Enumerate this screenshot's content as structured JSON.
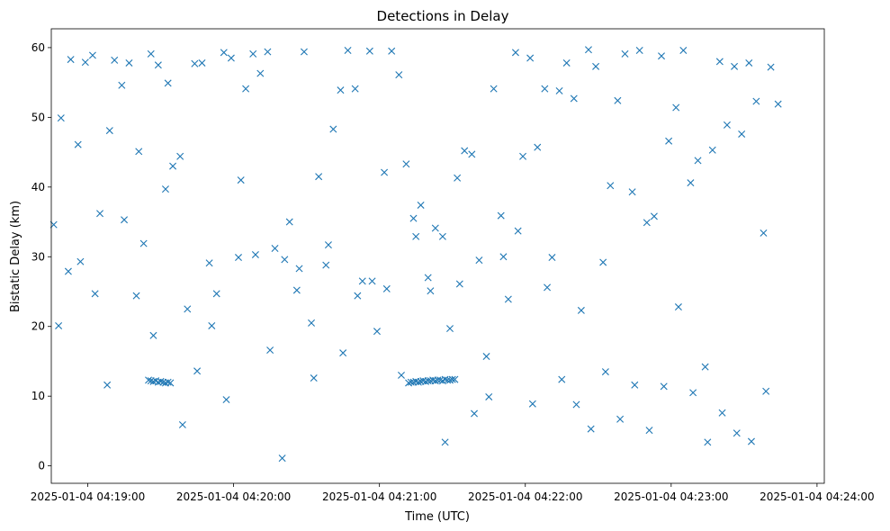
{
  "chart_data": {
    "type": "scatter",
    "title": "Detections in Delay",
    "xlabel": "Time (UTC)",
    "ylabel": "Bistatic Delay (km)",
    "x_axis": "time",
    "xlim": [
      "2025-01-04 04:18:45",
      "2025-01-04 04:24:03"
    ],
    "ylim": [
      -2.5,
      62.7
    ],
    "x_ticks": [
      "2025-01-04 04:19:00",
      "2025-01-04 04:20:00",
      "2025-01-04 04:21:00",
      "2025-01-04 04:22:00",
      "2025-01-04 04:23:00",
      "2025-01-04 04:24:00"
    ],
    "y_ticks": [
      0,
      10,
      20,
      30,
      40,
      50,
      60
    ],
    "grid": false,
    "legend": "none",
    "marker": "x",
    "color": "#1f77b4",
    "series": [
      {
        "x": [
          "2025-01-04 04:18:46",
          "2025-01-04 04:18:49",
          "2025-01-04 04:18:53",
          "2025-01-04 04:18:56",
          "2025-01-04 04:18:59",
          "2025-01-04 04:19:02",
          "2025-01-04 04:19:05",
          "2025-01-04 04:19:08",
          "2025-01-04 04:19:11",
          "2025-01-04 04:19:14",
          "2025-01-04 04:19:17",
          "2025-01-04 04:19:20",
          "2025-01-04 04:19:23",
          "2025-01-04 04:19:26",
          "2025-01-04 04:19:29",
          "2025-01-04 04:19:32",
          "2025-01-04 04:19:35",
          "2025-01-04 04:19:38",
          "2025-01-04 04:19:41",
          "2025-01-04 04:19:44",
          "2025-01-04 04:19:47",
          "2025-01-04 04:19:50",
          "2025-01-04 04:19:53",
          "2025-01-04 04:19:56",
          "2025-01-04 04:19:59",
          "2025-01-04 04:20:02",
          "2025-01-04 04:20:05",
          "2025-01-04 04:20:08",
          "2025-01-04 04:20:11",
          "2025-01-04 04:20:14",
          "2025-01-04 04:20:17",
          "2025-01-04 04:20:20",
          "2025-01-04 04:20:23",
          "2025-01-04 04:20:26",
          "2025-01-04 04:20:29",
          "2025-01-04 04:20:32",
          "2025-01-04 04:20:35",
          "2025-01-04 04:20:38",
          "2025-01-04 04:20:41",
          "2025-01-04 04:20:44",
          "2025-01-04 04:20:47",
          "2025-01-04 04:20:50",
          "2025-01-04 04:20:53",
          "2025-01-04 04:20:56",
          "2025-01-04 04:20:59",
          "2025-01-04 04:21:02",
          "2025-01-04 04:21:05",
          "2025-01-04 04:21:08",
          "2025-01-04 04:21:11",
          "2025-01-04 04:21:14",
          "2025-01-04 04:21:17",
          "2025-01-04 04:21:20",
          "2025-01-04 04:21:23",
          "2025-01-04 04:21:26",
          "2025-01-04 04:21:29",
          "2025-01-04 04:21:32",
          "2025-01-04 04:21:35",
          "2025-01-04 04:21:38",
          "2025-01-04 04:21:41",
          "2025-01-04 04:21:44",
          "2025-01-04 04:21:47",
          "2025-01-04 04:21:50",
          "2025-01-04 04:21:53",
          "2025-01-04 04:21:56",
          "2025-01-04 04:21:59",
          "2025-01-04 04:22:02",
          "2025-01-04 04:22:05",
          "2025-01-04 04:22:08",
          "2025-01-04 04:22:11",
          "2025-01-04 04:22:14",
          "2025-01-04 04:22:17",
          "2025-01-04 04:22:20",
          "2025-01-04 04:22:23",
          "2025-01-04 04:22:26",
          "2025-01-04 04:22:29",
          "2025-01-04 04:22:32",
          "2025-01-04 04:22:35",
          "2025-01-04 04:22:38",
          "2025-01-04 04:22:41",
          "2025-01-04 04:22:44",
          "2025-01-04 04:22:47",
          "2025-01-04 04:22:50",
          "2025-01-04 04:22:53",
          "2025-01-04 04:22:56",
          "2025-01-04 04:22:59",
          "2025-01-04 04:23:02",
          "2025-01-04 04:23:05",
          "2025-01-04 04:23:08",
          "2025-01-04 04:23:11",
          "2025-01-04 04:23:14",
          "2025-01-04 04:23:17",
          "2025-01-04 04:23:20",
          "2025-01-04 04:23:23",
          "2025-01-04 04:23:26",
          "2025-01-04 04:23:29",
          "2025-01-04 04:23:32",
          "2025-01-04 04:23:35",
          "2025-01-04 04:23:38",
          "2025-01-04 04:23:41",
          "2025-01-04 04:23:44",
          "2025-01-04 04:18:48",
          "2025-01-04 04:18:52",
          "2025-01-04 04:18:57",
          "2025-01-04 04:19:03",
          "2025-01-04 04:19:09",
          "2025-01-04 04:19:15",
          "2025-01-04 04:19:21",
          "2025-01-04 04:19:27",
          "2025-01-04 04:19:33",
          "2025-01-04 04:19:39",
          "2025-01-04 04:19:45",
          "2025-01-04 04:19:51",
          "2025-01-04 04:19:57",
          "2025-01-04 04:20:03",
          "2025-01-04 04:20:09",
          "2025-01-04 04:20:15",
          "2025-01-04 04:20:21",
          "2025-01-04 04:20:27",
          "2025-01-04 04:20:33",
          "2025-01-04 04:20:39",
          "2025-01-04 04:20:45",
          "2025-01-04 04:20:51",
          "2025-01-04 04:20:57",
          "2025-01-04 04:21:03",
          "2025-01-04 04:21:09",
          "2025-01-04 04:21:15",
          "2025-01-04 04:21:21",
          "2025-01-04 04:21:27",
          "2025-01-04 04:21:33",
          "2025-01-04 04:21:39",
          "2025-01-04 04:21:45",
          "2025-01-04 04:21:51",
          "2025-01-04 04:21:57",
          "2025-01-04 04:22:03",
          "2025-01-04 04:22:09",
          "2025-01-04 04:22:15",
          "2025-01-04 04:22:21",
          "2025-01-04 04:22:27",
          "2025-01-04 04:22:33",
          "2025-01-04 04:22:39",
          "2025-01-04 04:22:45",
          "2025-01-04 04:22:51",
          "2025-01-04 04:22:57",
          "2025-01-04 04:23:03",
          "2025-01-04 04:23:09",
          "2025-01-04 04:23:15",
          "2025-01-04 04:23:21",
          "2025-01-04 04:23:27",
          "2025-01-04 04:23:33",
          "2025-01-04 04:23:39",
          "2025-01-04 04:19:25",
          "2025-01-04 04:19:26",
          "2025-01-04 04:19:27",
          "2025-01-04 04:19:28",
          "2025-01-04 04:19:29",
          "2025-01-04 04:19:30",
          "2025-01-04 04:19:31",
          "2025-01-04 04:19:32",
          "2025-01-04 04:19:33",
          "2025-01-04 04:19:34",
          "2025-01-04 04:21:12",
          "2025-01-04 04:21:13",
          "2025-01-04 04:21:14",
          "2025-01-04 04:21:15",
          "2025-01-04 04:21:16",
          "2025-01-04 04:21:17",
          "2025-01-04 04:21:18",
          "2025-01-04 04:21:19",
          "2025-01-04 04:21:20",
          "2025-01-04 04:21:21",
          "2025-01-04 04:21:22",
          "2025-01-04 04:21:23",
          "2025-01-04 04:21:24",
          "2025-01-04 04:21:25",
          "2025-01-04 04:21:26",
          "2025-01-04 04:21:27",
          "2025-01-04 04:21:28",
          "2025-01-04 04:21:29",
          "2025-01-04 04:21:30",
          "2025-01-04 04:21:31"
        ],
        "y": [
          34.6,
          49.9,
          58.3,
          46.1,
          57.9,
          58.9,
          36.2,
          11.6,
          58.2,
          54.6,
          57.8,
          24.4,
          31.9,
          59.1,
          57.5,
          39.7,
          43.0,
          44.4,
          22.5,
          57.7,
          57.8,
          29.1,
          24.7,
          59.3,
          58.5,
          29.9,
          54.1,
          59.1,
          56.3,
          59.4,
          31.2,
          1.1,
          35.0,
          25.2,
          59.4,
          20.5,
          41.5,
          28.8,
          48.3,
          53.9,
          59.6,
          54.1,
          26.5,
          59.5,
          19.3,
          42.1,
          59.5,
          56.1,
          43.3,
          35.5,
          37.4,
          27.0,
          34.1,
          32.9,
          19.7,
          41.3,
          45.2,
          44.7,
          29.5,
          15.7,
          54.1,
          35.9,
          23.9,
          59.3,
          44.4,
          58.5,
          45.7,
          54.1,
          29.9,
          53.8,
          57.8,
          52.7,
          22.3,
          59.7,
          57.3,
          29.2,
          40.2,
          52.4,
          59.1,
          39.3,
          59.6,
          34.9,
          35.8,
          58.8,
          46.6,
          51.4,
          59.6,
          40.6,
          43.8,
          14.2,
          45.3,
          58.0,
          48.9,
          57.3,
          47.6,
          57.8,
          52.3,
          33.4,
          57.2,
          51.9,
          20.1,
          27.9,
          29.3,
          24.7,
          48.1,
          35.3,
          45.1,
          18.7,
          54.9,
          5.9,
          13.6,
          20.1,
          9.5,
          41.0,
          30.3,
          16.6,
          29.6,
          28.3,
          12.6,
          31.7,
          16.2,
          24.4,
          26.5,
          25.4,
          13.0,
          32.9,
          25.1,
          3.4,
          26.1,
          7.5,
          9.9,
          30.0,
          33.7,
          8.9,
          25.6,
          12.4,
          8.8,
          5.3,
          13.5,
          6.7,
          11.6,
          5.1,
          11.4,
          22.8,
          10.5,
          3.4,
          7.6,
          4.7,
          3.5,
          10.7,
          12.3,
          12.2,
          12.1,
          12.2,
          12.0,
          12.1,
          12.0,
          11.9,
          12.0,
          11.9,
          11.9,
          12.0,
          12.0,
          12.1,
          12.0,
          12.1,
          12.2,
          12.1,
          12.2,
          12.2,
          12.3,
          12.2,
          12.3,
          12.3,
          12.2,
          12.4,
          12.3,
          12.3,
          12.4,
          12.4
        ]
      }
    ]
  }
}
